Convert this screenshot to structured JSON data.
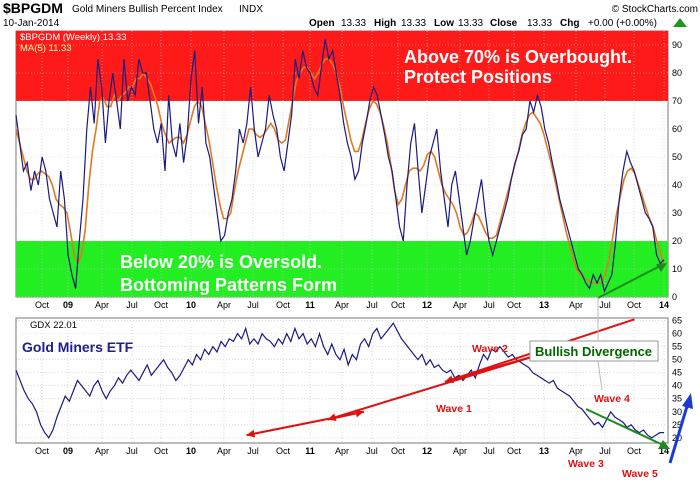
{
  "header": {
    "symbol": "$BPGDM",
    "name": "Gold Miners Bullish Percent Index",
    "exchange": "INDX",
    "date": "10-Jan-2014",
    "watermark": "© StockCharts.com",
    "quote": {
      "open_label": "Open",
      "open": "13.33",
      "high_label": "High",
      "high": "13.33",
      "low_label": "Low",
      "low": "13.33",
      "close_label": "Close",
      "close": "13.33",
      "chg_label": "Chg",
      "chg": "+0.00 (+0.00%)"
    },
    "arrow_icon": "up-triangle-icon"
  },
  "colors": {
    "overbought_zone": "#ff1a1a",
    "oversold_zone": "#22ee22",
    "bpgdm_line": "#1a1a80",
    "ma_line": "#e07a20",
    "ma_above_highlight": "#ff88cc",
    "gdx_line": "#1a1a80",
    "wave_arrow": "#e01010",
    "divergence_arrow": "#1e8a1e",
    "breakout_arrow": "#1a3ad6",
    "annotation_text": "#ffffff",
    "divergence_text": "#006600",
    "gdx_title": "#20208a"
  },
  "chart_data": [
    {
      "type": "line",
      "title": "$BPGDM (Weekly) 13.33",
      "series": [
        {
          "name": "$BPGDM (Weekly) 13.33",
          "values": [
            65,
            55,
            45,
            48,
            38,
            45,
            40,
            50,
            45,
            35,
            30,
            25,
            45,
            35,
            15,
            8,
            3,
            20,
            35,
            60,
            75,
            62,
            85,
            75,
            55,
            70,
            80,
            70,
            60,
            85,
            70,
            75,
            72,
            85,
            80,
            80,
            70,
            60,
            55,
            62,
            45,
            72,
            55,
            50,
            62,
            48,
            58,
            78,
            88,
            62,
            75,
            55,
            50,
            40,
            30,
            20,
            22,
            30,
            35,
            45,
            60,
            55,
            62,
            75,
            60,
            50,
            55,
            60,
            72,
            65,
            60,
            50,
            45,
            55,
            65,
            85,
            78,
            88,
            82,
            80,
            75,
            72,
            82,
            92,
            85,
            88,
            80,
            72,
            62,
            55,
            50,
            42,
            45,
            55,
            62,
            70,
            75,
            72,
            65,
            58,
            50,
            45,
            35,
            25,
            20,
            40,
            55,
            62,
            45,
            30,
            40,
            50,
            55,
            60,
            45,
            35,
            25,
            40,
            45,
            35,
            25,
            15,
            20,
            28,
            35,
            42,
            30,
            20,
            15,
            20,
            25,
            30,
            35,
            42,
            48,
            52,
            58,
            60,
            70,
            66,
            72,
            68,
            60,
            55,
            48,
            42,
            35,
            30,
            25,
            20,
            15,
            10,
            8,
            5,
            3,
            8,
            5,
            8,
            2,
            5,
            8,
            20,
            35,
            45,
            52,
            48,
            45,
            40,
            35,
            30,
            28,
            25,
            15,
            12,
            13.33
          ]
        },
        {
          "name": "MA(5) 11.33",
          "values": [
            60,
            55,
            50,
            45,
            42,
            42,
            44,
            45,
            44,
            43,
            40,
            35,
            33,
            32,
            30,
            23,
            15,
            12,
            15,
            24,
            40,
            52,
            60,
            70,
            71,
            68,
            68,
            72,
            70,
            72,
            73,
            75,
            75,
            78,
            78,
            80,
            78,
            76,
            72,
            68,
            62,
            58,
            55,
            56,
            57,
            57,
            55,
            58,
            63,
            68,
            70,
            68,
            62,
            56,
            48,
            40,
            33,
            28,
            28,
            30,
            38,
            45,
            50,
            55,
            60,
            60,
            58,
            57,
            58,
            60,
            62,
            60,
            56,
            55,
            56,
            63,
            70,
            77,
            80,
            82,
            82,
            80,
            78,
            80,
            83,
            85,
            85,
            83,
            80,
            75,
            68,
            62,
            56,
            52,
            52,
            56,
            62,
            67,
            70,
            69,
            66,
            61,
            55,
            47,
            38,
            33,
            35,
            40,
            45,
            46,
            46,
            45,
            47,
            51,
            52,
            50,
            45,
            40,
            37,
            35,
            33,
            30,
            25,
            22,
            23,
            26,
            30,
            29,
            26,
            23,
            21,
            21,
            22,
            27,
            32,
            37,
            42,
            47,
            52,
            58,
            62,
            65,
            66,
            64,
            62,
            58,
            53,
            48,
            42,
            36,
            30,
            24,
            19,
            14,
            10,
            8,
            7,
            6,
            5,
            5,
            5,
            5,
            9,
            14,
            22,
            30,
            36,
            42,
            45,
            46,
            44,
            40,
            36,
            32,
            28,
            25,
            20,
            16,
            11.33
          ]
        }
      ],
      "x_tick_labels": [
        "Oct",
        "09",
        "Apr",
        "Jul",
        "Oct",
        "10",
        "Apr",
        "Jul",
        "Oct",
        "11",
        "Apr",
        "Jul",
        "Oct",
        "12",
        "Apr",
        "Jul",
        "Oct",
        "13",
        "Apr",
        "Jul",
        "Oct",
        "14"
      ],
      "y_tick_labels": [
        "0",
        "10",
        "20",
        "30",
        "40",
        "50",
        "60",
        "70",
        "80",
        "90"
      ],
      "ylim": [
        0,
        95
      ],
      "zones": {
        "overbought_above": 70,
        "oversold_below": 20
      },
      "annotations": {
        "overbought_line1": "Above 70% is Overbought.",
        "overbought_line2": "Protect Positions",
        "oversold_line1": "Below 20% is Oversold.",
        "oversold_line2": "Bottoming Patterns Form"
      },
      "grid": true
    },
    {
      "type": "line",
      "title": "GDX 22.01",
      "panel_label": "Gold Miners ETF",
      "series": [
        {
          "name": "GDX 22.01",
          "values": [
            46,
            42,
            38,
            35,
            33,
            30,
            25,
            22,
            20,
            23,
            28,
            32,
            36,
            34,
            38,
            42,
            40,
            38,
            36,
            40,
            42,
            38,
            35,
            38,
            40,
            43,
            41,
            44,
            46,
            44,
            42,
            45,
            48,
            44,
            46,
            48,
            50,
            47,
            45,
            42,
            44,
            47,
            50,
            48,
            52,
            50,
            54,
            52,
            55,
            53,
            57,
            55,
            58,
            57,
            60,
            58,
            62,
            56,
            58,
            56,
            60,
            58,
            57,
            55,
            58,
            56,
            60,
            57,
            62,
            58,
            60,
            56,
            58,
            55,
            60,
            55,
            52,
            56,
            52,
            50,
            54,
            48,
            52,
            50,
            56,
            58,
            55,
            60,
            62,
            58,
            60,
            62,
            64,
            61,
            58,
            56,
            54,
            52,
            50,
            52,
            48,
            50,
            47,
            48,
            46,
            45,
            46,
            43,
            44,
            42,
            44,
            46,
            43,
            48,
            52,
            50,
            54,
            53,
            55,
            53,
            51,
            52,
            50,
            49,
            48,
            47,
            45,
            44,
            43,
            42,
            41,
            42,
            39,
            38,
            37,
            36,
            34,
            32,
            31,
            29,
            27,
            25,
            26,
            24,
            27,
            30,
            28,
            27,
            26,
            24,
            25,
            23,
            22,
            23,
            21,
            20,
            21,
            22,
            22.01
          ]
        }
      ],
      "x_tick_labels": [
        "Oct",
        "09",
        "Apr",
        "Jul",
        "Oct",
        "10",
        "Apr",
        "Jul",
        "Oct",
        "11",
        "Apr",
        "Jul",
        "Oct",
        "12",
        "Apr",
        "Jul",
        "Oct",
        "13",
        "Apr",
        "Jul",
        "Oct",
        "14"
      ],
      "y_tick_labels": [
        "20",
        "25",
        "30",
        "35",
        "40",
        "45",
        "50",
        "55",
        "60",
        "65"
      ],
      "ylim": [
        18,
        66
      ],
      "waves": [
        {
          "label": "Wave 1",
          "from": [
            64,
            65.5
          ],
          "to": [
            43,
            41.5
          ]
        },
        {
          "label": "Wave 2",
          "from": [
            43,
            41.5
          ],
          "to": [
            54,
            52.5
          ]
        },
        {
          "label": "Wave 3",
          "from": [
            54,
            52.5
          ],
          "to": [
            30,
            27
          ]
        },
        {
          "label": "Wave 4",
          "from": [
            30,
            27
          ],
          "to": [
            34,
            30
          ]
        },
        {
          "label": "Wave 5",
          "from": [
            34,
            30
          ],
          "to": [
            21,
            21
          ]
        }
      ],
      "divergence_label": "Bullish Divergence",
      "grid": true
    }
  ]
}
